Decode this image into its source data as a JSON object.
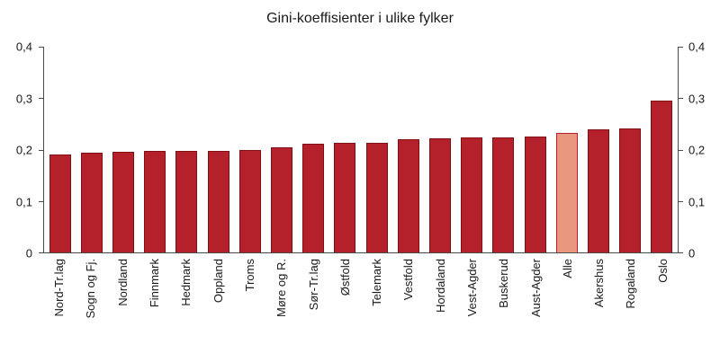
{
  "chart_data": {
    "type": "bar",
    "title": "Gini-koeffisienter i ulike fylker",
    "categories": [
      "Nord-Tr.lag",
      "Sogn og Fj.",
      "Nordland",
      "Finnmark",
      "Hedmark",
      "Oppland",
      "Troms",
      "Møre og R.",
      "Sør-Tr.lag",
      "Østfold",
      "Telemark",
      "Vestfold",
      "Hordaland",
      "Vest-Agder",
      "Buskerud",
      "Aust-Agder",
      "Alle",
      "Akershus",
      "Rogaland",
      "Oslo"
    ],
    "values": [
      0.19,
      0.194,
      0.195,
      0.197,
      0.198,
      0.198,
      0.2,
      0.205,
      0.212,
      0.213,
      0.214,
      0.22,
      0.221,
      0.224,
      0.224,
      0.226,
      0.232,
      0.24,
      0.241,
      0.296
    ],
    "highlight_category": "Alle",
    "ylim": [
      0,
      0.4
    ],
    "y_ticks": [
      {
        "value": 0,
        "label": "0"
      },
      {
        "value": 0.1,
        "label": "0,1"
      },
      {
        "value": 0.2,
        "label": "0,2"
      },
      {
        "value": 0.3,
        "label": "0,3"
      },
      {
        "value": 0.4,
        "label": "0,4"
      }
    ],
    "xlabel": "",
    "ylabel": "",
    "grid": false,
    "legend": false,
    "colors": {
      "bar": "#b5212a",
      "bar_border": "#7e1016",
      "highlight": "#e9977e",
      "highlight_border": "#b5212a",
      "axis": "#4a4a4a",
      "text": "#1a1a1a"
    }
  }
}
